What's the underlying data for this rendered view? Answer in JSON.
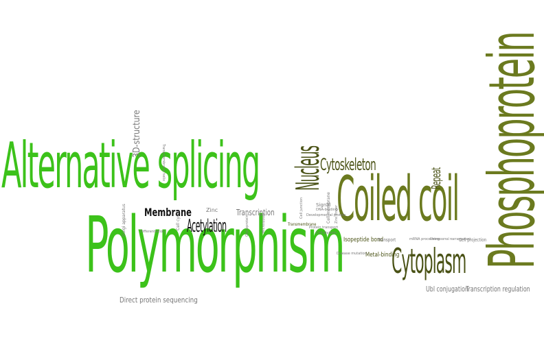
{
  "colors": {
    "bright_green": "#3cc21a",
    "olive": "#6b7a1f",
    "dark_olive": "#4a5216",
    "gray": "#777777",
    "black": "#111111"
  },
  "words": {
    "alternative_splicing": "Alternative splicing",
    "polymorphism": "Polymorphism",
    "phosphoprotein": "Phosphoprotein",
    "coiled_coil": "Coiled coil",
    "cytoplasm": "Cytoplasm",
    "nucleus": "Nucleus",
    "cytoskeleton": "Cytoskeleton",
    "repeat": "Repeat",
    "membrane": "Membrane",
    "acetylation": "Acetylation",
    "transcription": "Transcription",
    "structure_3d": "3D-structure",
    "direct_protein_sequencing": "Direct protein sequencing",
    "ubl_conjugation": "Ubl conjugation",
    "transcription_regulation": "Transcription regulation",
    "isopeptide_bond": "Isopeptide bond",
    "metal_binding": "Metal-binding",
    "zinc": "Zinc",
    "transport": "Transport",
    "signal": "Signal",
    "cell_projection": "Cell projection",
    "transmembrane": "Transmembrane",
    "cell_membrane": "Cell membrane",
    "cell_cycle": "Cell cycle",
    "golgi_apparatus": "Golgi apparatus",
    "chromosomal_rearrangement": "Chromosomal rearrangement",
    "mrna_processing": "mRNA processing",
    "differentiation": "Differentiation",
    "transmembrane_helix": "Transmembrane helix",
    "glycoprotein": "Glycoprotein",
    "dna_binding": "DNA-binding",
    "microtubule": "Microtubule",
    "cell_division": "Cell division",
    "zinc_finger": "Zinc-finger",
    "disease_mutation": "Disease mutation",
    "developmental_protein": "Developmental protein",
    "protein_transport": "Protein transport",
    "cell_junction": "Cell junction"
  }
}
